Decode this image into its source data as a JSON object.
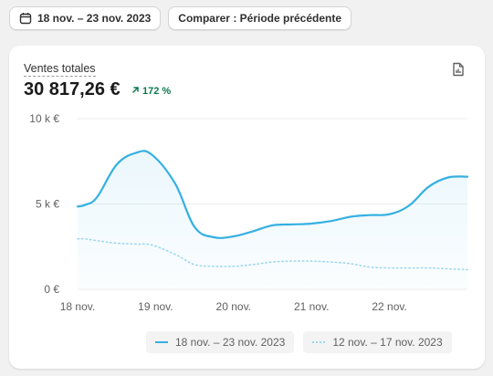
{
  "toolbar": {
    "date_range_label": "18 nov. – 23 nov. 2023",
    "compare_label": "Comparer : Période précédente"
  },
  "metric": {
    "title": "Ventes totales",
    "value": "30 817,26 €",
    "change": "172 %"
  },
  "colors": {
    "current": "#35b0e2",
    "previous": "#9bd6ef",
    "positive": "#0c7a4f"
  },
  "chart_data": {
    "type": "line",
    "x": [
      0,
      0.1,
      0.25,
      0.5,
      0.75,
      0.95,
      1.25,
      1.5,
      1.75,
      2.0,
      2.25,
      2.5,
      2.75,
      3.0,
      3.25,
      3.5,
      3.75,
      4.0,
      4.25,
      4.5,
      4.75,
      5.0
    ],
    "xlim": [
      0,
      5
    ],
    "categories": [
      "18 nov.",
      "19 nov.",
      "20 nov.",
      "21 nov.",
      "22 nov."
    ],
    "ylim": [
      0,
      10000
    ],
    "yticks": [
      0,
      5000,
      10000
    ],
    "ytick_labels": [
      "0 €",
      "5 k €",
      "10 k €"
    ],
    "grid": true,
    "legend_position": "bottom-right",
    "series": [
      {
        "name": "18 nov. – 23 nov. 2023",
        "style": "solid",
        "values": [
          4850,
          4950,
          5400,
          7300,
          8000,
          7900,
          6200,
          3650,
          3050,
          3100,
          3400,
          3750,
          3800,
          3850,
          4000,
          4250,
          4350,
          4400,
          4900,
          6000,
          6550,
          6600
        ]
      },
      {
        "name": "12 nov. – 17 nov. 2023",
        "style": "dotted",
        "values": [
          2950,
          2950,
          2850,
          2700,
          2650,
          2600,
          2050,
          1450,
          1350,
          1350,
          1450,
          1600,
          1650,
          1650,
          1600,
          1500,
          1300,
          1250,
          1250,
          1250,
          1200,
          1150
        ]
      }
    ]
  }
}
